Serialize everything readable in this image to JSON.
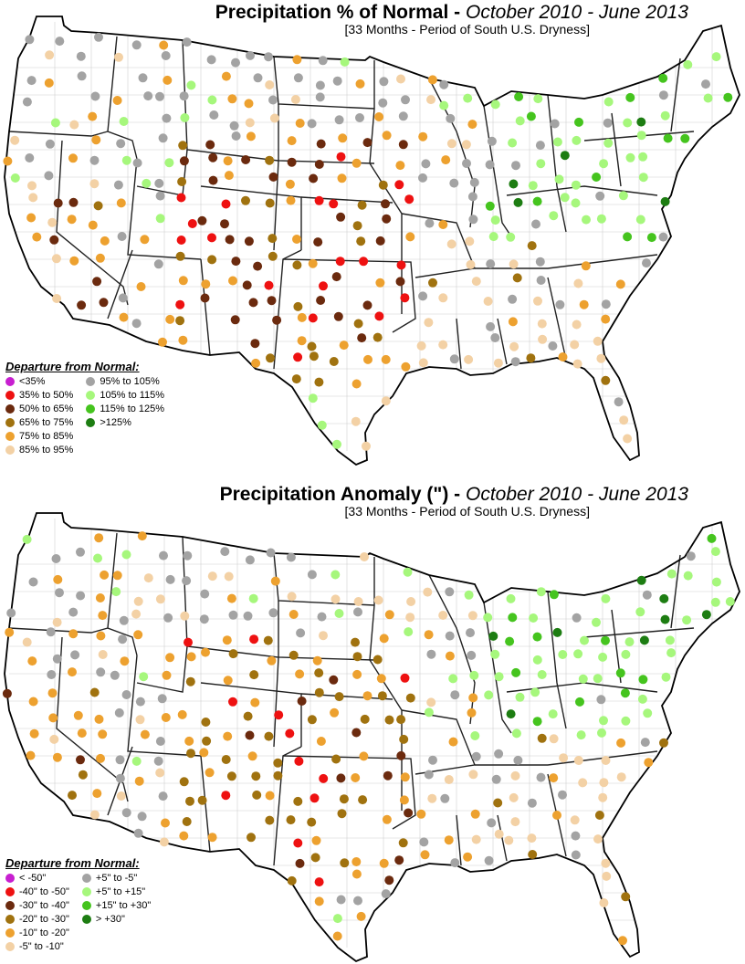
{
  "panels": [
    {
      "title_main": "Precipitation % of Normal - ",
      "title_period": "October 2010 - June 2013",
      "subtitle": "[33 Months - Period of South U.S. Dryness]",
      "legend_title": "Departure from Normal:",
      "legend": [
        {
          "label": "<35%",
          "color": "#c71fd0"
        },
        {
          "label": "35% to 50%",
          "color": "#ee1111"
        },
        {
          "label": "50% to 65%",
          "color": "#6b2a0e"
        },
        {
          "label": "65% to 75%",
          "color": "#a0720f"
        },
        {
          "label": "75% to 85%",
          "color": "#eda12f"
        },
        {
          "label": "85% to 95%",
          "color": "#f3d1a5"
        },
        {
          "label": "95% to 105%",
          "color": "#a3a3a3"
        },
        {
          "label": "105% to 115%",
          "color": "#a6f77c"
        },
        {
          "label": "115% to 125%",
          "color": "#45c41e"
        },
        {
          "label": ">125%",
          "color": "#1d7d12"
        }
      ]
    },
    {
      "title_main": "Precipitation Anomaly (\") - ",
      "title_period": "October 2010 - June 2013",
      "subtitle": "[33 Months - Period of South U.S. Dryness]",
      "legend_title": "Departure from Normal:",
      "legend": [
        {
          "label": "< -50\"",
          "color": "#c71fd0"
        },
        {
          "label": "-40\" to -50\"",
          "color": "#ee1111"
        },
        {
          "label": "-30\" to -40\"",
          "color": "#6b2a0e"
        },
        {
          "label": "-20\" to -30\"",
          "color": "#a0720f"
        },
        {
          "label": "-10\" to -20\"",
          "color": "#eda12f"
        },
        {
          "label": "-5\" to -10\"",
          "color": "#f3d1a5"
        },
        {
          "label": "+5\" to -5\"",
          "color": "#a3a3a3"
        },
        {
          "label": "+5\" to +15\"",
          "color": "#a6f77c"
        },
        {
          "label": "+15\" to +30\"",
          "color": "#45c41e"
        },
        {
          "label": "> +30\"",
          "color": "#1d7d12"
        }
      ]
    }
  ]
}
